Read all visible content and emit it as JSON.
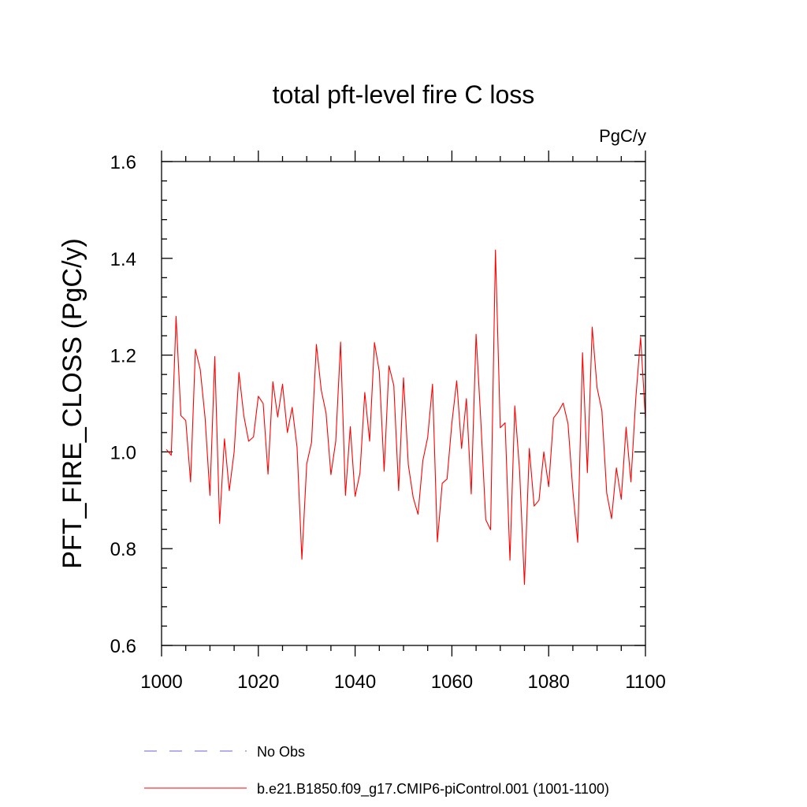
{
  "chart_data": {
    "type": "line",
    "title": "total pft-level fire C loss",
    "units_label": "PgC/y",
    "xlabel": "",
    "ylabel": "PFT_FIRE_CLOSS  (PgC/y)",
    "xlim": [
      1000,
      1100
    ],
    "ylim": [
      0.6,
      1.6
    ],
    "x_ticks": [
      1000,
      1020,
      1040,
      1060,
      1080,
      1100
    ],
    "y_ticks": [
      0.6,
      0.8,
      1.0,
      1.2,
      1.4,
      1.6
    ],
    "x_tick_labels": [
      "1000",
      "1020",
      "1040",
      "1060",
      "1080",
      "1100"
    ],
    "y_tick_labels": [
      "0.6",
      "0.8",
      "1.0",
      "1.2",
      "1.4",
      "1.6"
    ],
    "x_minor_step": 5,
    "y_minor_step": 0.04,
    "series": [
      {
        "name": "b.e21.B1850.f09_g17.CMIP6-piControl.001 (1001-1100)",
        "color": "#ff0000",
        "style": "solid",
        "x": [
          1001,
          1002,
          1003,
          1004,
          1005,
          1006,
          1007,
          1008,
          1009,
          1010,
          1011,
          1012,
          1013,
          1014,
          1015,
          1016,
          1017,
          1018,
          1019,
          1020,
          1021,
          1022,
          1023,
          1024,
          1025,
          1026,
          1027,
          1028,
          1029,
          1030,
          1031,
          1032,
          1033,
          1034,
          1035,
          1036,
          1037,
          1038,
          1039,
          1040,
          1041,
          1042,
          1043,
          1044,
          1045,
          1046,
          1047,
          1048,
          1049,
          1050,
          1051,
          1052,
          1053,
          1054,
          1055,
          1056,
          1057,
          1058,
          1059,
          1060,
          1061,
          1062,
          1063,
          1064,
          1065,
          1066,
          1067,
          1068,
          1069,
          1070,
          1071,
          1072,
          1073,
          1074,
          1075,
          1076,
          1077,
          1078,
          1079,
          1080,
          1081,
          1082,
          1083,
          1084,
          1085,
          1086,
          1087,
          1088,
          1089,
          1090,
          1091,
          1092,
          1093,
          1094,
          1095,
          1096,
          1097,
          1098,
          1099,
          1100
        ],
        "values": [
          1.005,
          0.993,
          1.28,
          1.075,
          1.065,
          0.938,
          1.212,
          1.17,
          1.07,
          0.91,
          1.197,
          0.852,
          1.027,
          0.92,
          1.0,
          1.164,
          1.075,
          1.022,
          1.031,
          1.115,
          1.1,
          0.954,
          1.145,
          1.072,
          1.14,
          1.04,
          1.092,
          1.01,
          0.778,
          0.975,
          1.02,
          1.222,
          1.128,
          1.08,
          0.953,
          1.022,
          1.227,
          0.91,
          1.052,
          0.908,
          0.956,
          1.123,
          1.022,
          1.226,
          1.166,
          0.96,
          1.178,
          1.137,
          0.92,
          1.153,
          0.973,
          0.906,
          0.871,
          0.982,
          1.03,
          1.14,
          0.814,
          0.935,
          0.944,
          1.06,
          1.147,
          1.007,
          1.11,
          0.913,
          1.243,
          1.06,
          0.86,
          0.839,
          1.417,
          1.05,
          1.06,
          0.776,
          1.095,
          0.96,
          0.726,
          1.007,
          0.888,
          0.9,
          1.0,
          0.928,
          1.07,
          1.083,
          1.101,
          1.058,
          0.92,
          0.813,
          1.205,
          0.957,
          1.258,
          1.133,
          1.085,
          0.915,
          0.862,
          0.967,
          0.902,
          1.051,
          0.938,
          1.11,
          1.237,
          1.068
        ]
      },
      {
        "name": "No Obs",
        "color": "#6666cc",
        "style": "dashed",
        "x": [],
        "values": []
      }
    ],
    "legend": {
      "placement": "bottom-left",
      "entries": [
        "No Obs",
        "b.e21.B1850.f09_g17.CMIP6-piControl.001 (1001-1100)"
      ]
    }
  }
}
